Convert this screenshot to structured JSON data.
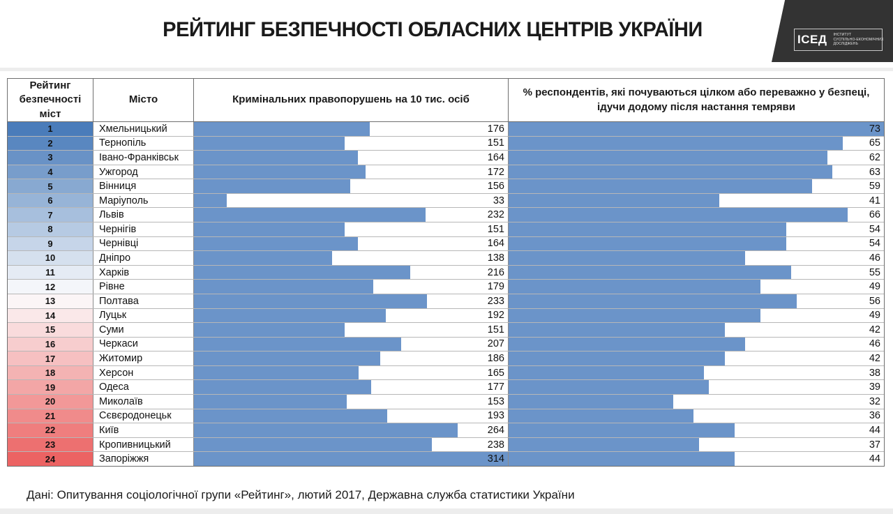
{
  "title": "РЕЙТИНГ БЕЗПЕЧНОСТІ ОБЛАСНИХ ЦЕНТРІВ УКРАЇНИ",
  "logo": {
    "abbr": "ІСЕД",
    "name_lines": [
      "ІНСТИТУТ",
      "СУСПІЛЬНО-ЕКОНОМІЧНИХ",
      "ДОСЛІДЖЕНЬ"
    ]
  },
  "table": {
    "col_rank": "Рейтинг безпечності міст",
    "col_city": "Місто",
    "col_crime": "Кримінальних правопорушень на 10 тис. осіб",
    "col_safe": "% респондентів, які почуваються цілком або переважно у безпеці, ідучи додому після настання темряви"
  },
  "footer": {
    "source": "Дані: Опитування соціологічної групи «Рейтинг», лютий 2017, Державна служба статистики України"
  },
  "colors": {
    "bar": "#6b94c9",
    "logo_bg": "#333333",
    "rank_scale_top": "#4a7cba",
    "rank_scale_mid": "#fcfcfd",
    "rank_scale_bottom": "#ec6363"
  },
  "chart_data": {
    "type": "table",
    "title": "РЕЙТИНГ БЕЗПЕЧНОСТІ ОБЛАСНИХ ЦЕНТРІВ УКРАЇНИ",
    "columns": [
      "Рейтинг безпечності міст",
      "Місто",
      "Кримінальних правопорушень на 10 тис. осіб",
      "% респондентів, які почуваються цілком або переважно у безпеці, ідучи додому після настання темряви"
    ],
    "crime_bar_max": 314,
    "safe_bar_max": 73,
    "rows": [
      {
        "rank": 1,
        "city": "Хмельницький",
        "crime": 176,
        "safe": 73,
        "rank_color": "#4a7cba"
      },
      {
        "rank": 2,
        "city": "Тернопіль",
        "crime": 151,
        "safe": 65,
        "rank_color": "#5987c0"
      },
      {
        "rank": 3,
        "city": "Івано-Франківськ",
        "crime": 164,
        "safe": 62,
        "rank_color": "#6992c6"
      },
      {
        "rank": 4,
        "city": "Ужгород",
        "crime": 172,
        "safe": 63,
        "rank_color": "#789dcb"
      },
      {
        "rank": 5,
        "city": "Вінниця",
        "crime": 156,
        "safe": 59,
        "rank_color": "#88a9d1"
      },
      {
        "rank": 6,
        "city": "Маріуполь",
        "crime": 33,
        "safe": 41,
        "rank_color": "#97b4d7"
      },
      {
        "rank": 7,
        "city": "Львів",
        "crime": 232,
        "safe": 66,
        "rank_color": "#a7bfdd"
      },
      {
        "rank": 8,
        "city": "Чернігів",
        "crime": 151,
        "safe": 54,
        "rank_color": "#b6cae3"
      },
      {
        "rank": 9,
        "city": "Чернівці",
        "crime": 164,
        "safe": 54,
        "rank_color": "#c6d5e9"
      },
      {
        "rank": 10,
        "city": "Дніпро",
        "crime": 138,
        "safe": 46,
        "rank_color": "#d5e0ee"
      },
      {
        "rank": 11,
        "city": "Харків",
        "crime": 216,
        "safe": 55,
        "rank_color": "#e5ebf4"
      },
      {
        "rank": 12,
        "city": "Рівне",
        "crime": 179,
        "safe": 49,
        "rank_color": "#f4f6fa"
      },
      {
        "rank": 13,
        "city": "Полтава",
        "crime": 233,
        "safe": 56,
        "rank_color": "#fbf5f6"
      },
      {
        "rank": 14,
        "city": "Луцьк",
        "crime": 192,
        "safe": 49,
        "rank_color": "#fae8e9"
      },
      {
        "rank": 15,
        "city": "Суми",
        "crime": 151,
        "safe": 42,
        "rank_color": "#f9dbdc"
      },
      {
        "rank": 16,
        "city": "Черкаси",
        "crime": 207,
        "safe": 46,
        "rank_color": "#f7cdce"
      },
      {
        "rank": 17,
        "city": "Житомир",
        "crime": 186,
        "safe": 42,
        "rank_color": "#f6c0c1"
      },
      {
        "rank": 18,
        "city": "Херсон",
        "crime": 165,
        "safe": 38,
        "rank_color": "#f4b3b3"
      },
      {
        "rank": 19,
        "city": "Одеса",
        "crime": 177,
        "safe": 39,
        "rank_color": "#f3a6a6"
      },
      {
        "rank": 20,
        "city": "Миколаїв",
        "crime": 153,
        "safe": 32,
        "rank_color": "#f29898"
      },
      {
        "rank": 21,
        "city": "Сєвєродонецьк",
        "crime": 193,
        "safe": 36,
        "rank_color": "#f08b8b"
      },
      {
        "rank": 22,
        "city": "Київ",
        "crime": 264,
        "safe": 44,
        "rank_color": "#ef7e7e"
      },
      {
        "rank": 23,
        "city": "Кропивницький",
        "crime": 238,
        "safe": 37,
        "rank_color": "#ed7070"
      },
      {
        "rank": 24,
        "city": "Запоріжжя",
        "crime": 314,
        "safe": 44,
        "rank_color": "#ec6363"
      }
    ]
  }
}
